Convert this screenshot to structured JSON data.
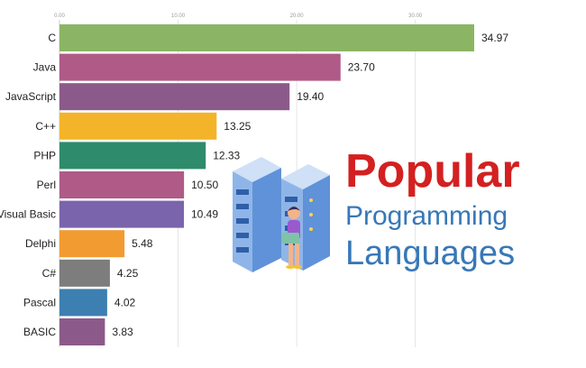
{
  "chart_data": {
    "type": "bar",
    "orientation": "horizontal",
    "categories": [
      "C",
      "Java",
      "JavaScript",
      "C++",
      "PHP",
      "Perl",
      "Visual Basic",
      "Delphi",
      "C#",
      "Pascal",
      "BASIC"
    ],
    "values": [
      34.97,
      23.7,
      19.4,
      13.25,
      12.33,
      10.5,
      10.49,
      5.48,
      4.25,
      4.02,
      3.83
    ],
    "value_labels": [
      "34.97",
      "23.70",
      "19.40",
      "13.25",
      "12.33",
      "10.50",
      "10.49",
      "5.48",
      "4.25",
      "4.02",
      "3.83"
    ],
    "colors": [
      "#8bb564",
      "#b05a87",
      "#8c5a8a",
      "#f4b42a",
      "#2e8b6b",
      "#b05a87",
      "#7a64ab",
      "#f29b30",
      "#7d7d7d",
      "#3d7fb0",
      "#8c5a8a"
    ],
    "x_ticks": [
      0,
      10,
      20,
      30
    ],
    "x_tick_labels": [
      "0.00",
      "10.00",
      "20.00",
      "30.00"
    ],
    "xlim": [
      0,
      34.97
    ],
    "grid": true,
    "legend": "none"
  },
  "headline": {
    "line1": "Popular",
    "line2": "Programming",
    "line3": "Languages",
    "color1": "#d42020",
    "color2": "#3778b8"
  },
  "illustration": {
    "icon": "server-rack-with-person-laptop-icon"
  }
}
